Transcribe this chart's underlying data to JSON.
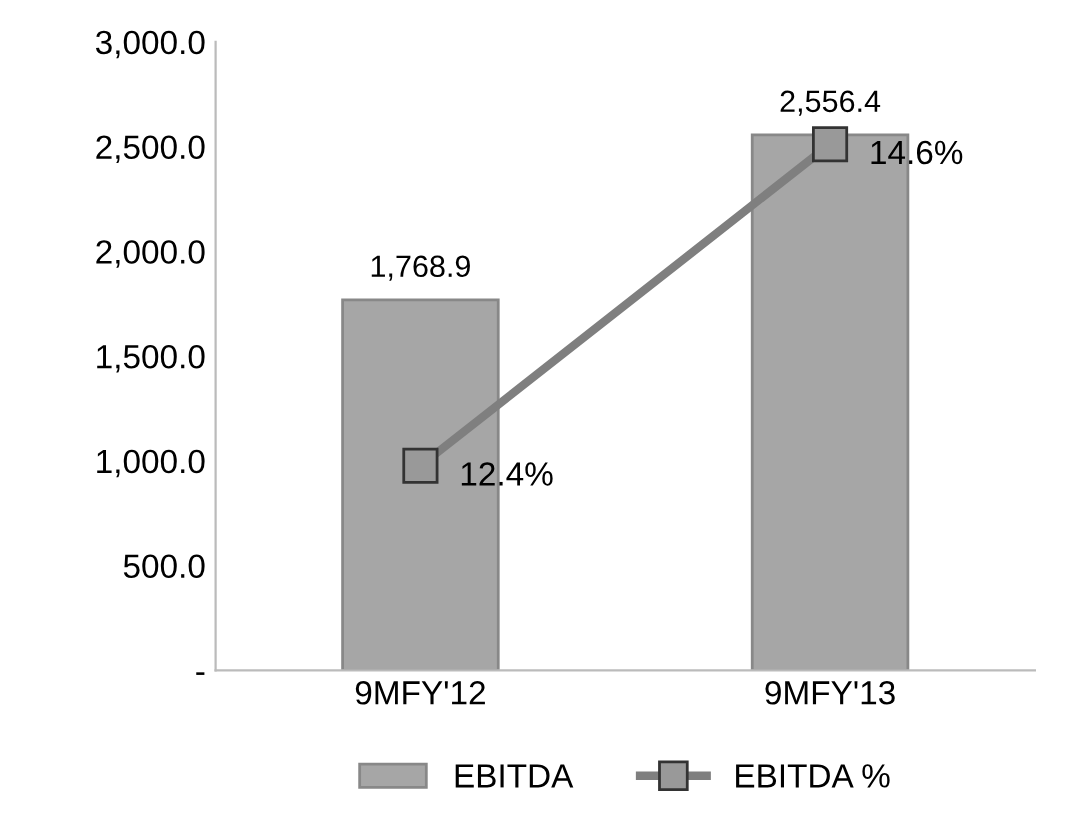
{
  "chart_data": {
    "type": "bar",
    "categories": [
      "9MFY'12",
      "9MFY'13"
    ],
    "series": [
      {
        "name": "EBITDA",
        "color": "#a6a6a6",
        "values": [
          1768.9,
          2556.4
        ],
        "value_labels": [
          "1,768.9",
          "2,556.4"
        ]
      },
      {
        "name": "EBITDA %",
        "type": "line",
        "axis": "y2",
        "color": "#7f7f7f",
        "marker": "square",
        "values": [
          12.4,
          14.6
        ],
        "value_labels": [
          "12.4%",
          "14.6%"
        ]
      }
    ],
    "ylim": [
      0,
      3000
    ],
    "yticks": [
      {
        "value": 0,
        "label": "-"
      },
      {
        "value": 500,
        "label": "500.0"
      },
      {
        "value": 1000,
        "label": "1,000.0"
      },
      {
        "value": 1500,
        "label": "1,500.0"
      },
      {
        "value": 2000,
        "label": "2,000.0"
      },
      {
        "value": 2500,
        "label": "2,500.0"
      },
      {
        "value": 3000,
        "label": "3,000.0"
      }
    ],
    "y2lim": [
      11.0,
      15.3
    ],
    "tick_labels": "xy",
    "grid": false,
    "legend": "bottom"
  }
}
